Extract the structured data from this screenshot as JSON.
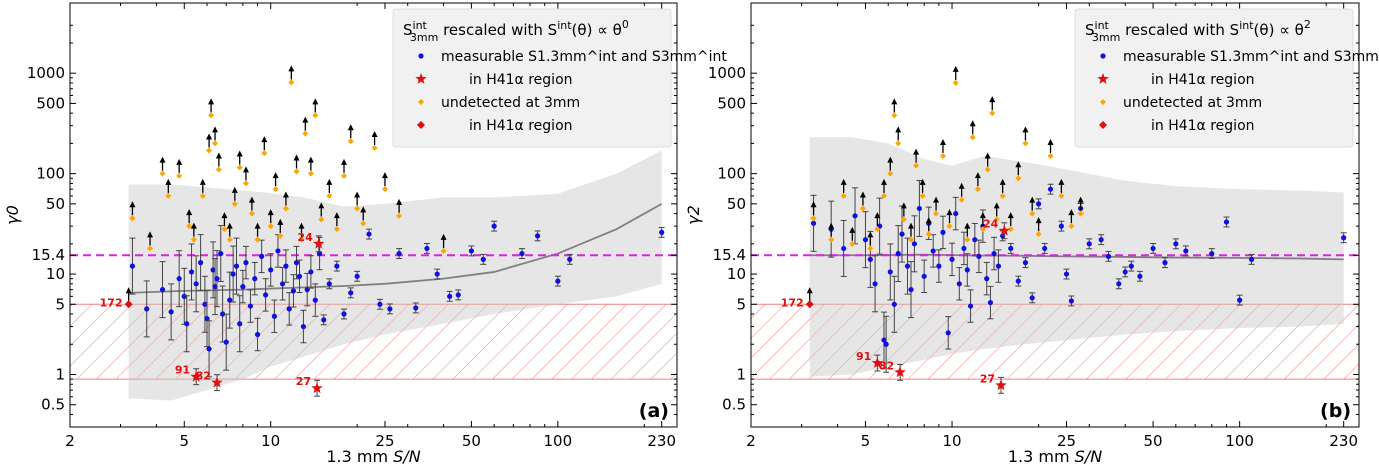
{
  "colors": {
    "measurable": "#1010e0",
    "undetected": "#ffa500",
    "h41": "#e01010",
    "errorbar": "#444444",
    "band": "#c8c8c8",
    "hatch": "#f08080",
    "threshold": "#e020e0",
    "median": "#808080",
    "arrow": "#000000"
  },
  "chart_data": [
    {
      "type": "scatter",
      "panel_label": "(a)",
      "xlabel": "1.3 mm S/N",
      "ylabel": "γ0",
      "xscale": "log",
      "yscale": "log",
      "xlim": [
        2,
        260
      ],
      "ylim": [
        0.3,
        5000
      ],
      "xticks": [
        "2",
        "5",
        "10",
        "25",
        "50",
        "100",
        "230"
      ],
      "xtick_values": [
        2,
        5,
        10,
        25,
        50,
        100,
        230
      ],
      "yticks": [
        "0.5",
        "1",
        "5",
        "10",
        "15.4",
        "50",
        "100",
        "500",
        "1000"
      ],
      "ytick_values": [
        0.5,
        1,
        5,
        10,
        15.4,
        50,
        100,
        500,
        1000
      ],
      "threshold": 15.4,
      "hatch_band": [
        0.9,
        5
      ],
      "legend": {
        "title": "S3mm^int rescaled with S^int(θ) ∝ θ^0",
        "placement": "top-right",
        "entries": [
          "measurable S1.3mm^int and S3mm^int",
          "in H41α region",
          "undetected at 3mm",
          "in H41α region"
        ]
      },
      "gray_band": {
        "x": [
          3.2,
          4.5,
          6,
          8,
          10,
          13,
          18,
          25,
          40,
          60,
          100,
          160,
          230
        ],
        "upper": [
          78,
          78,
          73,
          68,
          64,
          58,
          47,
          50,
          58,
          58,
          63,
          100,
          170
        ],
        "lower": [
          0.58,
          0.55,
          0.7,
          0.9,
          1.2,
          1.5,
          2.0,
          2.5,
          3.2,
          4.0,
          5.0,
          6.0,
          8.0
        ]
      },
      "median_line": {
        "x": [
          3.2,
          5,
          8,
          12,
          18,
          25,
          40,
          60,
          100,
          160,
          230
        ],
        "y": [
          6.5,
          6.8,
          7.0,
          7.3,
          7.6,
          8.0,
          9.0,
          10.5,
          16.0,
          28,
          50
        ]
      },
      "measurable": [
        [
          3.3,
          12
        ],
        [
          3.7,
          4.5
        ],
        [
          4.2,
          7
        ],
        [
          4.5,
          4.2
        ],
        [
          4.8,
          9
        ],
        [
          5,
          6
        ],
        [
          5.1,
          3.2
        ],
        [
          5.3,
          10.5
        ],
        [
          5.5,
          8
        ],
        [
          5.7,
          13
        ],
        [
          5.9,
          5
        ],
        [
          6,
          3.6
        ],
        [
          6.1,
          1.8
        ],
        [
          6.3,
          11
        ],
        [
          6.4,
          7.5
        ],
        [
          6.5,
          9
        ],
        [
          6.7,
          16
        ],
        [
          6.8,
          4
        ],
        [
          7,
          2.1
        ],
        [
          7.2,
          5.5
        ],
        [
          7.4,
          10
        ],
        [
          7.6,
          12
        ],
        [
          7.8,
          3.2
        ],
        [
          8,
          7.5
        ],
        [
          8.2,
          13
        ],
        [
          8.5,
          4.8
        ],
        [
          8.8,
          9
        ],
        [
          9,
          2.5
        ],
        [
          9.3,
          15
        ],
        [
          9.6,
          6.2
        ],
        [
          10,
          11
        ],
        [
          10.3,
          3.8
        ],
        [
          10.6,
          17
        ],
        [
          11,
          8
        ],
        [
          11.3,
          12
        ],
        [
          11.6,
          4.5
        ],
        [
          12,
          6.8
        ],
        [
          12.3,
          13
        ],
        [
          12.6,
          9.5
        ],
        [
          13,
          3
        ],
        [
          13.4,
          7
        ],
        [
          13.8,
          10.5
        ],
        [
          14.3,
          5.5
        ],
        [
          14.8,
          16
        ],
        [
          15.3,
          3.5
        ],
        [
          16,
          8
        ],
        [
          17,
          12
        ],
        [
          18,
          4
        ],
        [
          19,
          6.5
        ],
        [
          20,
          9.5
        ],
        [
          22,
          25
        ],
        [
          24,
          5
        ],
        [
          26,
          4.5
        ],
        [
          28,
          16
        ],
        [
          32,
          4.6
        ],
        [
          35,
          18
        ],
        [
          38,
          10
        ],
        [
          42,
          6
        ],
        [
          45,
          6.2
        ],
        [
          50,
          17
        ],
        [
          55,
          14
        ],
        [
          60,
          30
        ],
        [
          75,
          16
        ],
        [
          85,
          24
        ],
        [
          100,
          8.5
        ],
        [
          110,
          14
        ],
        [
          230,
          26
        ]
      ],
      "measurable_h41": [
        {
          "x": 5.5,
          "y": 0.95,
          "label": "91"
        },
        {
          "x": 6.5,
          "y": 0.83,
          "label": "82"
        },
        {
          "x": 14.5,
          "y": 0.73,
          "label": "27"
        },
        {
          "x": 14.7,
          "y": 20,
          "label": "24"
        }
      ],
      "undetected": [
        [
          3.3,
          36
        ],
        [
          3.8,
          18
        ],
        [
          4.2,
          100
        ],
        [
          4.4,
          60
        ],
        [
          4.8,
          95
        ],
        [
          5.2,
          30
        ],
        [
          5.4,
          22
        ],
        [
          5.8,
          60
        ],
        [
          6.1,
          170
        ],
        [
          6.2,
          380
        ],
        [
          6.4,
          200
        ],
        [
          6.6,
          110
        ],
        [
          6.9,
          28
        ],
        [
          7.2,
          22
        ],
        [
          7.5,
          50
        ],
        [
          7.8,
          115
        ],
        [
          8.2,
          80
        ],
        [
          8.6,
          40
        ],
        [
          9,
          22
        ],
        [
          9.5,
          160
        ],
        [
          10,
          30
        ],
        [
          10.4,
          70
        ],
        [
          10.8,
          24
        ],
        [
          11.3,
          45
        ],
        [
          11.8,
          810
        ],
        [
          12.3,
          105
        ],
        [
          12.8,
          22
        ],
        [
          13.2,
          250
        ],
        [
          13.8,
          100
        ],
        [
          14.3,
          380
        ],
        [
          15,
          35
        ],
        [
          16,
          60
        ],
        [
          17,
          28
        ],
        [
          18,
          95
        ],
        [
          19,
          210
        ],
        [
          20,
          45
        ],
        [
          21,
          32
        ],
        [
          23,
          180
        ],
        [
          25,
          70
        ],
        [
          28,
          38
        ],
        [
          40,
          17
        ]
      ],
      "undetected_h41": [
        {
          "x": 3.2,
          "y": 5,
          "label": "172"
        }
      ]
    },
    {
      "type": "scatter",
      "panel_label": "(b)",
      "xlabel": "1.3 mm S/N",
      "ylabel": "γ2",
      "xscale": "log",
      "yscale": "log",
      "xlim": [
        2,
        260
      ],
      "ylim": [
        0.3,
        5000
      ],
      "xticks": [
        "2",
        "5",
        "10",
        "25",
        "50",
        "100",
        "230"
      ],
      "xtick_values": [
        2,
        5,
        10,
        25,
        50,
        100,
        230
      ],
      "yticks": [
        "0.5",
        "1",
        "5",
        "10",
        "15.4",
        "50",
        "100",
        "500",
        "1000"
      ],
      "ytick_values": [
        0.5,
        1,
        5,
        10,
        15.4,
        50,
        100,
        500,
        1000
      ],
      "threshold": 15.4,
      "hatch_band": [
        0.9,
        5
      ],
      "legend": {
        "title": "S3mm^int rescaled with S^int(θ) ∝ θ^2",
        "placement": "top-right",
        "entries": [
          "measurable S1.3mm^int and S3mm^int",
          "in H41α region",
          "undetected at 3mm",
          "in H41α region"
        ]
      },
      "gray_band": {
        "x": [
          3.2,
          4.5,
          6,
          8,
          10,
          13,
          18,
          25,
          40,
          60,
          100,
          160,
          230
        ],
        "upper": [
          230,
          230,
          200,
          140,
          120,
          150,
          130,
          110,
          85,
          75,
          70,
          68,
          65
        ],
        "lower": [
          0.95,
          1.0,
          1.2,
          1.4,
          1.6,
          1.8,
          2.0,
          2.2,
          2.5,
          2.7,
          2.9,
          3.0,
          3.2
        ]
      },
      "median_line": {
        "x": [
          3.2,
          5,
          8,
          12,
          18,
          25,
          40,
          60,
          100,
          160,
          230
        ],
        "y": [
          15.4,
          15.4,
          15.6,
          15.3,
          15.2,
          15.0,
          14.8,
          14.6,
          14.5,
          14.3,
          14.0
        ]
      },
      "measurable": [
        [
          3.3,
          32
        ],
        [
          3.8,
          28
        ],
        [
          4.2,
          18
        ],
        [
          4.6,
          38
        ],
        [
          5,
          22
        ],
        [
          5.2,
          14
        ],
        [
          5.4,
          8
        ],
        [
          5.6,
          30
        ],
        [
          5.8,
          2.2
        ],
        [
          5.9,
          2.0
        ],
        [
          6.1,
          10.5
        ],
        [
          6.3,
          5
        ],
        [
          6.5,
          16
        ],
        [
          6.7,
          25
        ],
        [
          7,
          12
        ],
        [
          7.2,
          7
        ],
        [
          7.4,
          20
        ],
        [
          7.7,
          45
        ],
        [
          8,
          9.5
        ],
        [
          8.3,
          32
        ],
        [
          8.6,
          17
        ],
        [
          9,
          12
        ],
        [
          9.3,
          26
        ],
        [
          9.7,
          2.6
        ],
        [
          10,
          14
        ],
        [
          10.3,
          40
        ],
        [
          10.6,
          8
        ],
        [
          11,
          18
        ],
        [
          11.3,
          11
        ],
        [
          11.6,
          4.8
        ],
        [
          12,
          22
        ],
        [
          12.4,
          15
        ],
        [
          12.8,
          30
        ],
        [
          13.2,
          9
        ],
        [
          13.6,
          5.2
        ],
        [
          14,
          16
        ],
        [
          14.5,
          12
        ],
        [
          15,
          24
        ],
        [
          16,
          18
        ],
        [
          17,
          8.5
        ],
        [
          18,
          13
        ],
        [
          19,
          5.8
        ],
        [
          20,
          50
        ],
        [
          21,
          18
        ],
        [
          22,
          70
        ],
        [
          24,
          30
        ],
        [
          25,
          10
        ],
        [
          26,
          5.4
        ],
        [
          28,
          45
        ],
        [
          30,
          20
        ],
        [
          33,
          22
        ],
        [
          35,
          15
        ],
        [
          38,
          8
        ],
        [
          40,
          10.5
        ],
        [
          42,
          12
        ],
        [
          45,
          9.5
        ],
        [
          50,
          18
        ],
        [
          55,
          13
        ],
        [
          60,
          20
        ],
        [
          65,
          17
        ],
        [
          80,
          16
        ],
        [
          90,
          33
        ],
        [
          100,
          5.5
        ],
        [
          110,
          14
        ],
        [
          230,
          23
        ]
      ],
      "measurable_h41": [
        {
          "x": 5.5,
          "y": 1.3,
          "label": "91"
        },
        {
          "x": 6.6,
          "y": 1.05,
          "label": "82"
        },
        {
          "x": 14.8,
          "y": 0.78,
          "label": "27"
        },
        {
          "x": 15.2,
          "y": 27,
          "label": "24"
        }
      ],
      "undetected": [
        [
          3.3,
          36
        ],
        [
          3.8,
          22
        ],
        [
          4.2,
          60
        ],
        [
          4.5,
          20
        ],
        [
          4.9,
          45
        ],
        [
          5.2,
          18
        ],
        [
          5.5,
          28
        ],
        [
          5.8,
          60
        ],
        [
          6.1,
          100
        ],
        [
          6.3,
          380
        ],
        [
          6.5,
          200
        ],
        [
          6.8,
          35
        ],
        [
          7.2,
          22
        ],
        [
          7.5,
          120
        ],
        [
          7.9,
          60
        ],
        [
          8.3,
          25
        ],
        [
          8.8,
          40
        ],
        [
          9.3,
          150
        ],
        [
          9.8,
          30
        ],
        [
          10.3,
          800
        ],
        [
          10.8,
          55
        ],
        [
          11.3,
          22
        ],
        [
          11.8,
          230
        ],
        [
          12.3,
          70
        ],
        [
          12.8,
          28
        ],
        [
          13.3,
          110
        ],
        [
          13.8,
          400
        ],
        [
          14.3,
          35
        ],
        [
          15,
          60
        ],
        [
          16,
          28
        ],
        [
          17,
          90
        ],
        [
          18,
          200
        ],
        [
          19,
          40
        ],
        [
          20,
          25
        ],
        [
          22,
          150
        ],
        [
          24,
          60
        ],
        [
          26,
          30
        ],
        [
          28,
          40
        ]
      ],
      "undetected_h41": [
        {
          "x": 3.2,
          "y": 5,
          "label": "172"
        }
      ]
    }
  ]
}
